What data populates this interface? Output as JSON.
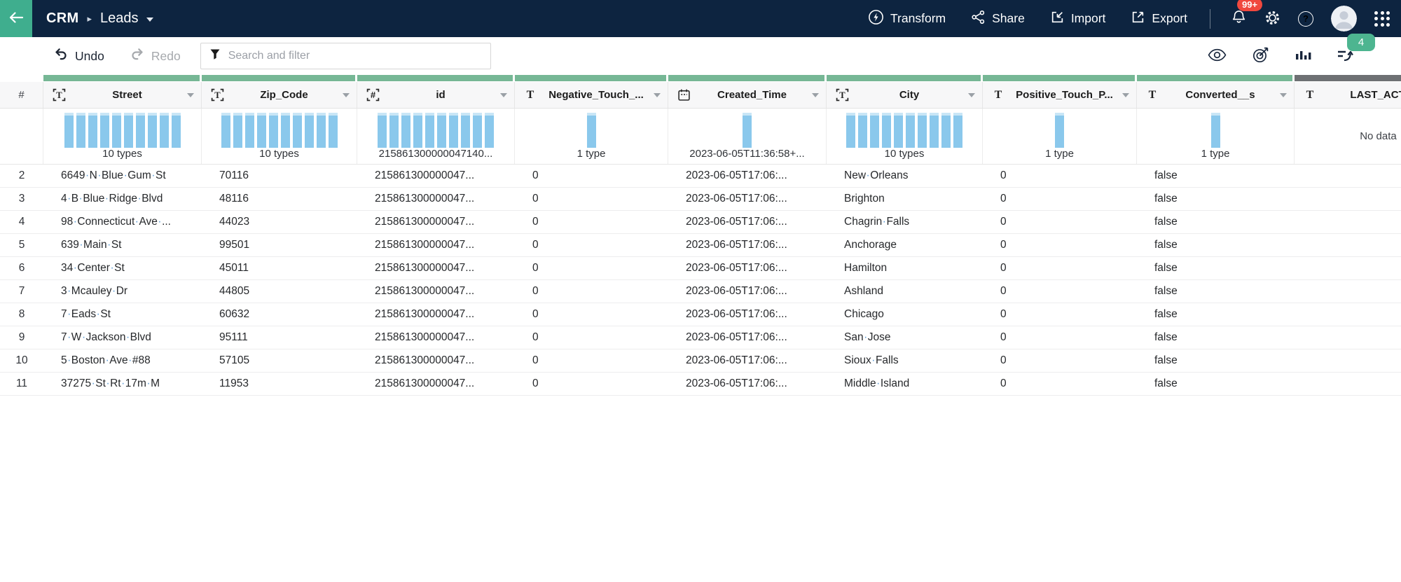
{
  "topbar": {
    "breadcrumb_app": "CRM",
    "breadcrumb_page": "Leads",
    "transform_label": "Transform",
    "share_label": "Share",
    "import_label": "Import",
    "export_label": "Export",
    "notification_badge": "99+",
    "help_label": "?"
  },
  "toolbar": {
    "undo_label": "Undo",
    "redo_label": "Redo",
    "search_placeholder": "Search and filter",
    "steps_badge": "4"
  },
  "table": {
    "row_header": "#",
    "columns": [
      {
        "name": "Street",
        "type_icon": "text-bracket-icon",
        "quality": "green",
        "hist_bars": 10,
        "hist_label": "10 types"
      },
      {
        "name": "Zip_Code",
        "type_icon": "text-bracket-icon",
        "quality": "green",
        "hist_bars": 10,
        "hist_label": "10 types"
      },
      {
        "name": "id",
        "type_icon": "number-bracket-icon",
        "quality": "green",
        "hist_bars": 10,
        "hist_label": "215861300000047140..."
      },
      {
        "name": "Negative_Touch_...",
        "type_icon": "text-plain-icon",
        "quality": "green",
        "hist_bars": 1,
        "hist_label": "1 type"
      },
      {
        "name": "Created_Time",
        "type_icon": "calendar-icon",
        "quality": "green",
        "hist_bars": 1,
        "hist_label": "2023-06-05T11:36:58+..."
      },
      {
        "name": "City",
        "type_icon": "text-bracket-icon",
        "quality": "green",
        "hist_bars": 10,
        "hist_label": "10 types"
      },
      {
        "name": "Positive_Touch_P...",
        "type_icon": "text-plain-icon",
        "quality": "green",
        "hist_bars": 1,
        "hist_label": "1 type"
      },
      {
        "name": "Converted__s",
        "type_icon": "text-plain-icon",
        "quality": "green",
        "hist_bars": 1,
        "hist_label": "1 type"
      },
      {
        "name": "LAST_ACTIO",
        "type_icon": "text-plain-icon",
        "quality": "gray",
        "hist_bars": 0,
        "hist_label": "No data"
      }
    ],
    "rows": [
      {
        "num": "2",
        "cells": [
          "6649·N·Blue·Gum·St",
          "70116",
          "215861300000047...",
          "0",
          "2023-06-05T17:06:...",
          "New·Orleans",
          "0",
          "false",
          ""
        ]
      },
      {
        "num": "3",
        "cells": [
          "4·B·Blue·Ridge·Blvd",
          "48116",
          "215861300000047...",
          "0",
          "2023-06-05T17:06:...",
          "Brighton",
          "0",
          "false",
          ""
        ]
      },
      {
        "num": "4",
        "cells": [
          "98·Connecticut·Ave·...",
          "44023",
          "215861300000047...",
          "0",
          "2023-06-05T17:06:...",
          "Chagrin·Falls",
          "0",
          "false",
          ""
        ]
      },
      {
        "num": "5",
        "cells": [
          "639·Main·St",
          "99501",
          "215861300000047...",
          "0",
          "2023-06-05T17:06:...",
          "Anchorage",
          "0",
          "false",
          ""
        ]
      },
      {
        "num": "6",
        "cells": [
          "34·Center·St",
          "45011",
          "215861300000047...",
          "0",
          "2023-06-05T17:06:...",
          "Hamilton",
          "0",
          "false",
          ""
        ]
      },
      {
        "num": "7",
        "cells": [
          "3·Mcauley·Dr",
          "44805",
          "215861300000047...",
          "0",
          "2023-06-05T17:06:...",
          "Ashland",
          "0",
          "false",
          ""
        ]
      },
      {
        "num": "8",
        "cells": [
          "7·Eads·St",
          "60632",
          "215861300000047...",
          "0",
          "2023-06-05T17:06:...",
          "Chicago",
          "0",
          "false",
          ""
        ]
      },
      {
        "num": "9",
        "cells": [
          "7·W·Jackson·Blvd",
          "95111",
          "215861300000047...",
          "0",
          "2023-06-05T17:06:...",
          "San·Jose",
          "0",
          "false",
          ""
        ]
      },
      {
        "num": "10",
        "cells": [
          "5·Boston·Ave·#88",
          "57105",
          "215861300000047...",
          "0",
          "2023-06-05T17:06:...",
          "Sioux·Falls",
          "0",
          "false",
          ""
        ]
      },
      {
        "num": "11",
        "cells": [
          "37275·St·Rt·17m·M",
          "11953",
          "215861300000047...",
          "0",
          "2023-06-05T17:06:...",
          "Middle·Island",
          "0",
          "false",
          ""
        ]
      }
    ]
  },
  "colors": {
    "topbar_bg": "#0d2440",
    "back_green": "#3fae8e",
    "quality_green": "#76b795",
    "quality_gray": "#6e7073",
    "histogram_blue": "#8ac8ec",
    "badge_green": "#4db590",
    "badge_red": "#f0483e"
  }
}
